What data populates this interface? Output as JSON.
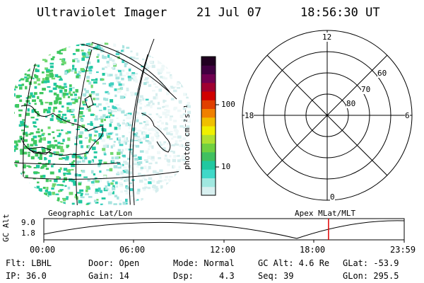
{
  "header": {
    "title": "Ultraviolet Imager",
    "date": "21 Jul 07",
    "time": "18:56:30 UT"
  },
  "colorbar": {
    "label": "photon cm⁻²s⁻¹",
    "ticks": [
      "100",
      "10"
    ],
    "colors": [
      "#d8f0f0",
      "#a0e8e0",
      "#40d8c8",
      "#20c8a0",
      "#40c060",
      "#70d040",
      "#b0e030",
      "#f0f000",
      "#f0c000",
      "#f08000",
      "#e04000",
      "#d00000",
      "#a00030",
      "#700050",
      "#400040",
      "#200020"
    ]
  },
  "polar": {
    "mlt_labels": [
      "12",
      "18",
      "6",
      "0"
    ],
    "lat_labels": [
      "60",
      "70",
      "80"
    ]
  },
  "timeline": {
    "left_label": "Geographic Lat/Lon",
    "right_label": "Apex MLat/MLT",
    "axis_label": "GC Alt",
    "y_ticks": [
      "9.0",
      "1.8"
    ],
    "x_ticks": [
      "00:00",
      "06:00",
      "12:00",
      "18:00",
      "23:59"
    ],
    "current_time_fraction": 0.79
  },
  "footer": {
    "row1": [
      "Flt: LBHL",
      "Door: Open",
      "Mode: Normal",
      "GC Alt: 4.6 Re",
      "GLat: -53.9"
    ],
    "row2": [
      "IP: 36.0",
      "Gain: 14",
      "Dsp:     4.3",
      "Seq: 39",
      "GLon: 295.5"
    ]
  }
}
